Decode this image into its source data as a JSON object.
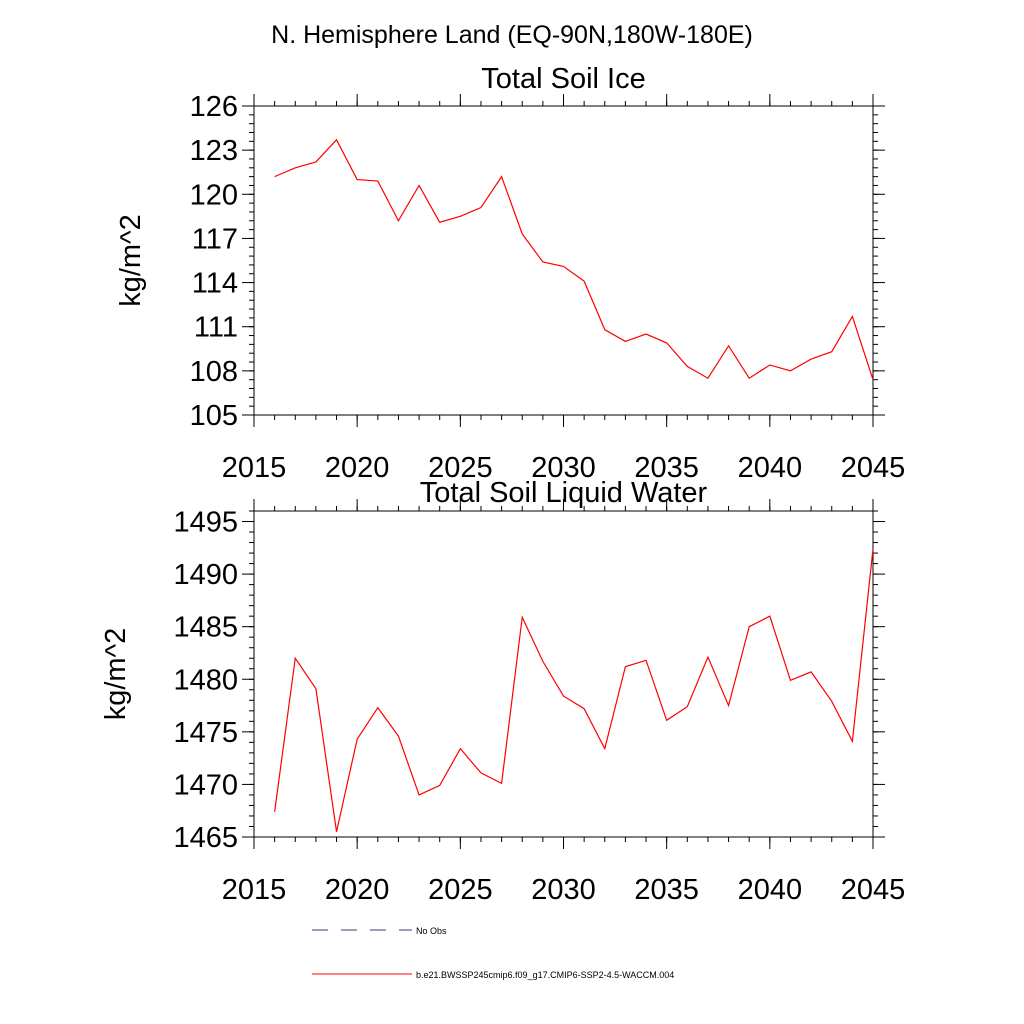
{
  "page": {
    "header": "N. Hemisphere Land (EQ-90N,180W-180E)"
  },
  "chart_data": [
    {
      "type": "line",
      "title": "Total Soil Ice",
      "xlabel": "",
      "ylabel": "kg/m^2",
      "xlim": [
        2015,
        2045
      ],
      "ylim": [
        105,
        126
      ],
      "xticks": [
        2015,
        2020,
        2025,
        2030,
        2035,
        2040,
        2045
      ],
      "yticks": [
        105,
        108,
        111,
        114,
        117,
        120,
        123,
        126
      ],
      "grid": false,
      "series": [
        {
          "name": "b.e21.BWSSP245cmip6.f09_g17.CMIP6-SSP2-4.5-WACCM.004",
          "color": "#ff0000",
          "x": [
            2016,
            2017,
            2018,
            2019,
            2020,
            2021,
            2022,
            2023,
            2024,
            2025,
            2026,
            2027,
            2028,
            2029,
            2030,
            2031,
            2032,
            2033,
            2034,
            2035,
            2036,
            2037,
            2038,
            2039,
            2040,
            2041,
            2042,
            2043,
            2044,
            2045
          ],
          "values": [
            121.2,
            121.8,
            122.2,
            123.7,
            121.0,
            120.9,
            118.2,
            120.6,
            118.1,
            118.5,
            119.1,
            121.2,
            117.3,
            115.4,
            115.1,
            114.1,
            110.8,
            110.0,
            110.5,
            109.9,
            108.3,
            107.5,
            109.7,
            107.5,
            108.4,
            108.0,
            108.8,
            109.3,
            111.7,
            107.4
          ]
        }
      ]
    },
    {
      "type": "line",
      "title": "Total Soil Liquid Water",
      "xlabel": "",
      "ylabel": "kg/m^2",
      "xlim": [
        2015,
        2045
      ],
      "ylim": [
        1465,
        1496
      ],
      "xticks": [
        2015,
        2020,
        2025,
        2030,
        2035,
        2040,
        2045
      ],
      "yticks": [
        1465,
        1470,
        1475,
        1480,
        1485,
        1490,
        1495
      ],
      "grid": false,
      "series": [
        {
          "name": "b.e21.BWSSP245cmip6.f09_g17.CMIP6-SSP2-4.5-WACCM.004",
          "color": "#ff0000",
          "x": [
            2016,
            2017,
            2018,
            2019,
            2020,
            2021,
            2022,
            2023,
            2024,
            2025,
            2026,
            2027,
            2028,
            2029,
            2030,
            2031,
            2032,
            2033,
            2034,
            2035,
            2036,
            2037,
            2038,
            2039,
            2040,
            2041,
            2042,
            2043,
            2044,
            2045
          ],
          "values": [
            1467.4,
            1482.0,
            1479.1,
            1465.5,
            1474.3,
            1477.3,
            1474.6,
            1469.0,
            1469.9,
            1473.4,
            1471.1,
            1470.1,
            1485.9,
            1481.7,
            1478.4,
            1477.2,
            1473.4,
            1481.2,
            1481.8,
            1476.1,
            1477.4,
            1482.1,
            1477.5,
            1485.0,
            1486.0,
            1479.9,
            1480.7,
            1477.9,
            1474.1,
            1492.4
          ]
        }
      ]
    }
  ],
  "legend": {
    "placement": "bottom",
    "items": [
      {
        "label": "No Obs",
        "color": "#3a3a7a",
        "style": "dashed"
      },
      {
        "label": "b.e21.BWSSP245cmip6.f09_g17.CMIP6-SSP2-4.5-WACCM.004",
        "color": "#ff0000",
        "style": "solid"
      }
    ]
  }
}
